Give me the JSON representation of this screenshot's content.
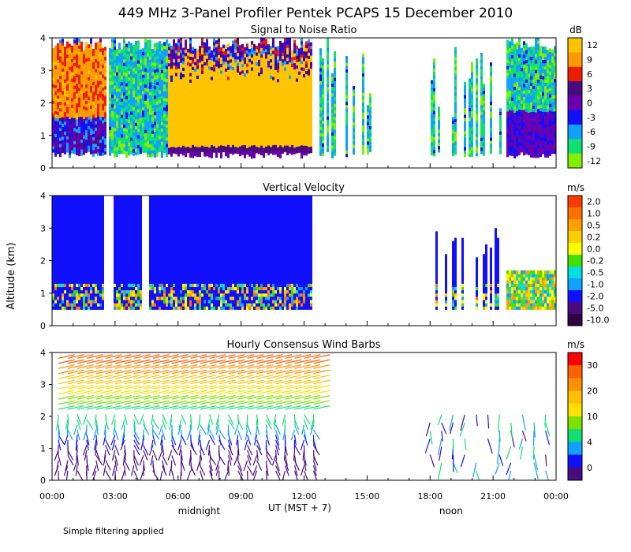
{
  "title": "449 MHz 3-Panel Profiler Pentek PCAPS 15 December 2010",
  "ylabel": "Altitude (km)",
  "xlabel": "UT  (MST + 7)",
  "footnote": "Simple filtering applied",
  "time_markers": [
    {
      "label": "midnight",
      "hour": 7
    },
    {
      "label": "noon",
      "hour": 19
    }
  ],
  "chart_data": [
    {
      "type": "heatmap",
      "title": "Signal to Noise Ratio",
      "units": "dB",
      "x_range_hours": [
        0,
        24
      ],
      "ylim": [
        0,
        4
      ],
      "y_ticks": [
        0,
        1,
        2,
        3,
        4
      ],
      "x_ticks": [
        "00:00",
        "03:00",
        "06:00",
        "09:00",
        "12:00",
        "15:00",
        "18:00",
        "21:00",
        "00:00"
      ],
      "colorbar": {
        "labels": [
          "12",
          "9",
          "6",
          "3",
          "0",
          "-3",
          "-6",
          "-9",
          "-12"
        ],
        "colors": [
          "#ffc400",
          "#ff9a00",
          "#ee1c00",
          "#4a0a80",
          "#6a00b0",
          "#1010ff",
          "#10a0ff",
          "#10e070",
          "#80f000"
        ]
      }
    },
    {
      "type": "heatmap",
      "title": "Vertical Velocity",
      "units": "m/s",
      "x_range_hours": [
        0,
        24
      ],
      "ylim": [
        0,
        4
      ],
      "y_ticks": [
        0,
        1,
        2,
        3,
        4
      ],
      "x_ticks": [
        "00:00",
        "03:00",
        "06:00",
        "09:00",
        "12:00",
        "15:00",
        "18:00",
        "21:00",
        "00:00"
      ],
      "colorbar": {
        "labels": [
          "2.0",
          "1.0",
          "0.5",
          "0.2",
          "0.0",
          "-0.2",
          "-0.5",
          "-1.0",
          "-2.0",
          "-5.0",
          "-10.0"
        ],
        "colors": [
          "#ff3a00",
          "#ff7000",
          "#ffa000",
          "#ffd000",
          "#ffff00",
          "#40e000",
          "#00e0e0",
          "#10a0ff",
          "#1010ff",
          "#4a0a80",
          "#300040"
        ]
      }
    },
    {
      "type": "wind_barbs",
      "title": "Hourly Consensus Wind Barbs",
      "units": "m/s",
      "x_range_hours": [
        0,
        24
      ],
      "ylim": [
        0,
        4
      ],
      "y_ticks": [
        0,
        1,
        2,
        3,
        4
      ],
      "x_ticks": [
        "00:00",
        "03:00",
        "06:00",
        "09:00",
        "12:00",
        "15:00",
        "18:00",
        "21:00",
        "00:00"
      ],
      "colorbar": {
        "labels": [
          "30",
          "20",
          "10",
          "4",
          "0"
        ],
        "colors": [
          "#ff0000",
          "#ff6000",
          "#ff9000",
          "#ffc000",
          "#ffe000",
          "#80e000",
          "#10e070",
          "#10a0ff",
          "#1010ff",
          "#4a0a80"
        ]
      }
    }
  ]
}
